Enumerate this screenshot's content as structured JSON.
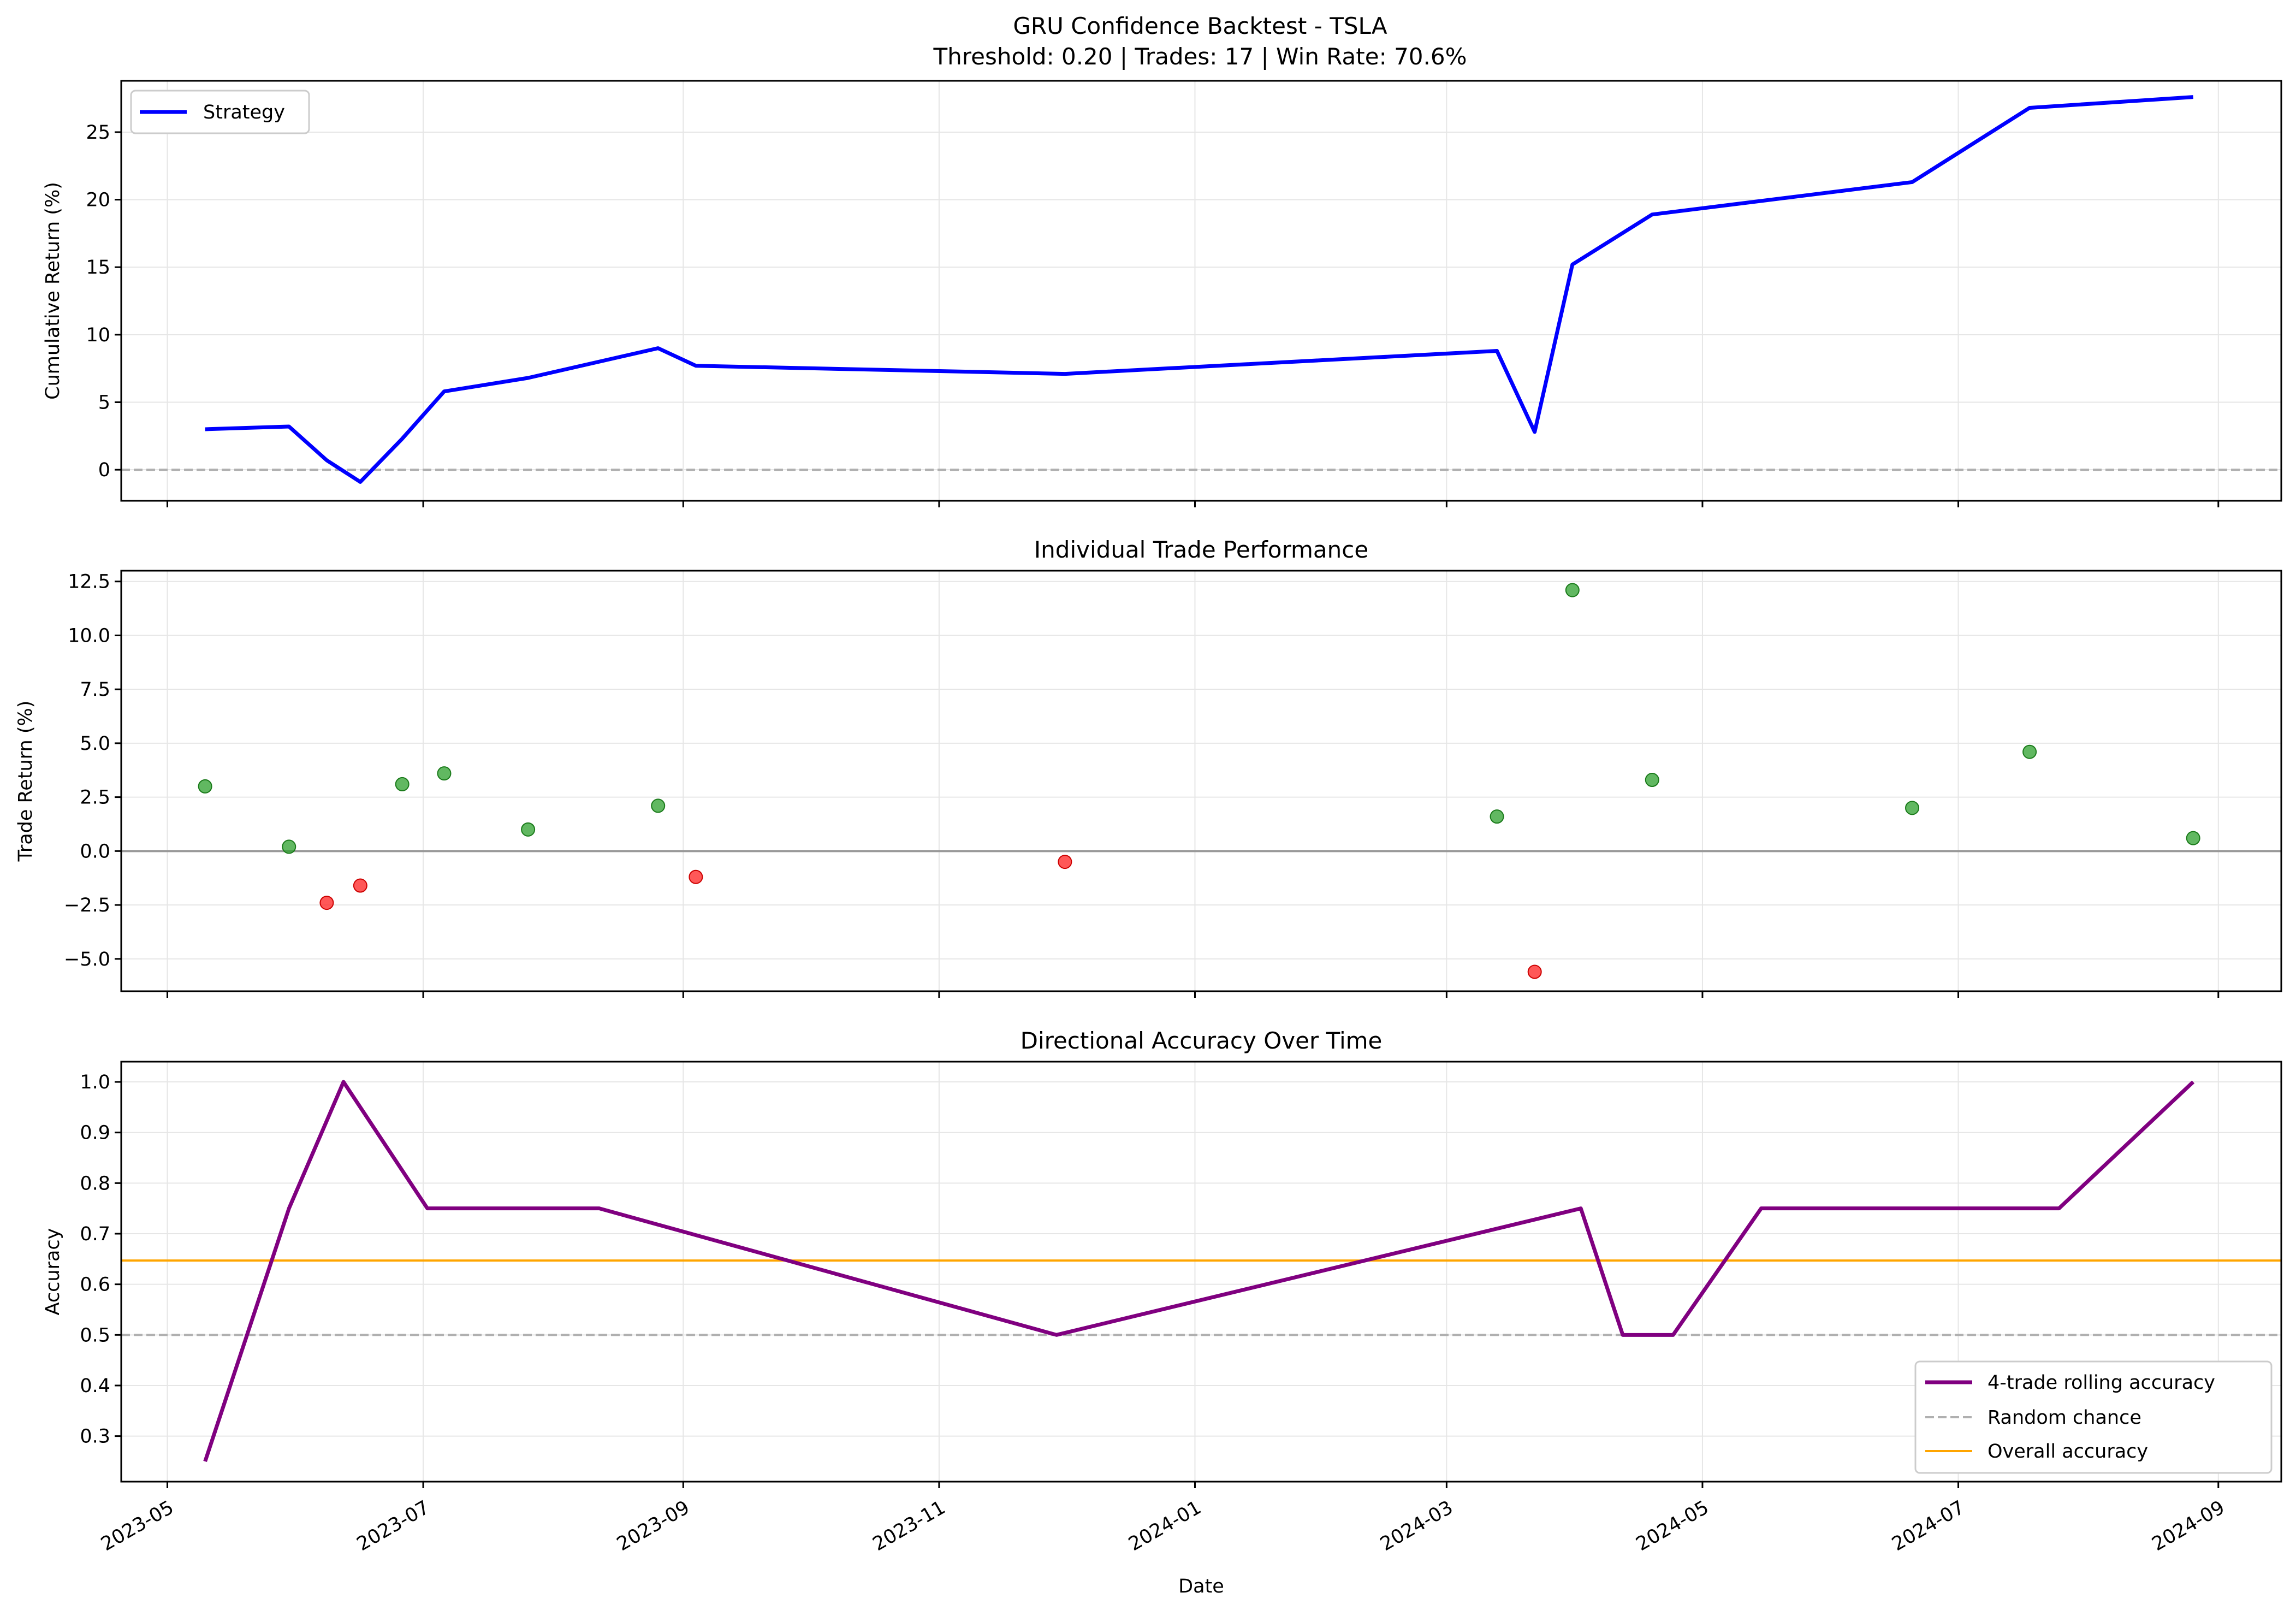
{
  "figure": {
    "title_line1": "GRU Confidence Backtest - TSLA",
    "title_line2": "Threshold: 0.20 | Trades: 17 | Win Rate: 70.6%"
  },
  "colors": {
    "strategy": "#0000ff",
    "win": "#2ca02c",
    "loss": "#ff2020",
    "accuracy": "#800080",
    "random": "#b0b0b0",
    "overall": "#ffa500",
    "zero_line": "#999999",
    "grid": "#e6e6e6"
  },
  "chart_data": [
    {
      "type": "line",
      "title": "",
      "xlabel": "",
      "ylabel": "Cumulative Return (%)",
      "xlim": [
        "2023-04-20",
        "2024-09-16"
      ],
      "ylim": [
        -2.3,
        28.8
      ],
      "yticks": [
        0,
        5,
        10,
        15,
        20,
        25
      ],
      "grid": true,
      "legend_position": "upper left",
      "reference_lines": [
        {
          "y": 0,
          "style": "dashed",
          "color": "#b0b0b0"
        }
      ],
      "series": [
        {
          "name": "Strategy",
          "color": "#0000ff",
          "x": [
            "2023-05-10",
            "2023-05-30",
            "2023-06-08",
            "2023-06-16",
            "2023-06-26",
            "2023-07-06",
            "2023-07-26",
            "2023-08-26",
            "2023-09-04",
            "2023-12-01",
            "2024-03-13",
            "2024-03-22",
            "2024-03-31",
            "2024-04-19",
            "2024-06-20",
            "2024-07-18",
            "2024-08-26"
          ],
          "y": [
            3.0,
            3.2,
            0.7,
            -0.9,
            2.3,
            5.8,
            6.8,
            9.0,
            7.7,
            7.1,
            8.8,
            2.8,
            15.2,
            18.9,
            21.3,
            26.8,
            27.6
          ]
        }
      ]
    },
    {
      "type": "scatter",
      "title": "Individual Trade Performance",
      "xlabel": "",
      "ylabel": "Trade Return (%)",
      "xlim": [
        "2023-04-20",
        "2024-09-16"
      ],
      "ylim": [
        -6.5,
        13.0
      ],
      "yticks": [
        -5.0,
        -2.5,
        0.0,
        2.5,
        5.0,
        7.5,
        10.0,
        12.5
      ],
      "ytick_labels": [
        "−5.0",
        "−2.5",
        "0.0",
        "2.5",
        "5.0",
        "7.5",
        "10.0",
        "12.5"
      ],
      "grid": true,
      "reference_lines": [
        {
          "y": 0,
          "style": "solid",
          "color": "#999999"
        }
      ],
      "series": [
        {
          "x": [
            "2023-05-10",
            "2023-05-30",
            "2023-06-08",
            "2023-06-16",
            "2023-06-26",
            "2023-07-06",
            "2023-07-26",
            "2023-08-26",
            "2023-09-04",
            "2023-12-01",
            "2024-03-13",
            "2024-03-22",
            "2024-03-31",
            "2024-04-19",
            "2024-06-20",
            "2024-07-18",
            "2024-08-26"
          ],
          "y": [
            3.0,
            0.2,
            -2.4,
            -1.6,
            3.1,
            3.6,
            1.0,
            2.1,
            -1.2,
            -0.5,
            1.6,
            -5.6,
            12.1,
            3.3,
            2.0,
            4.6,
            0.6
          ]
        }
      ]
    },
    {
      "type": "line",
      "title": "Directional Accuracy Over Time",
      "xlabel": "Date",
      "ylabel": "Accuracy",
      "xlim": [
        "2023-04-20",
        "2024-09-16"
      ],
      "ylim": [
        0.21,
        1.04
      ],
      "yticks": [
        0.3,
        0.4,
        0.5,
        0.6,
        0.7,
        0.8,
        0.9,
        1.0
      ],
      "xticks": [
        "2023-05-01",
        "2023-07-01",
        "2023-09-01",
        "2023-11-01",
        "2024-01-01",
        "2024-03-01",
        "2024-05-01",
        "2024-07-01",
        "2024-09-01"
      ],
      "xtick_labels": [
        "2023-05",
        "2023-07",
        "2023-09",
        "2023-11",
        "2024-01",
        "2024-03",
        "2024-05",
        "2024-07",
        "2024-09"
      ],
      "grid": true,
      "legend_position": "lower right",
      "series": [
        {
          "name": "4-trade rolling accuracy",
          "color": "#800080",
          "x": [
            "2023-05-10",
            "2023-05-30",
            "2023-06-12",
            "2023-07-02",
            "2023-08-12",
            "2023-11-29",
            "2024-04-02",
            "2024-04-12",
            "2024-04-24",
            "2024-05-15",
            "2024-07-25",
            "2024-08-26"
          ],
          "y": [
            0.25,
            0.75,
            1.0,
            0.75,
            0.75,
            0.5,
            0.75,
            0.5,
            0.5,
            0.75,
            0.75,
            1.0
          ]
        },
        {
          "name": "Random chance",
          "color": "#b0b0b0",
          "style": "dashed",
          "y": 0.5
        },
        {
          "name": "Overall accuracy",
          "color": "#ffa500",
          "style": "solid",
          "y": 0.647
        }
      ]
    }
  ]
}
